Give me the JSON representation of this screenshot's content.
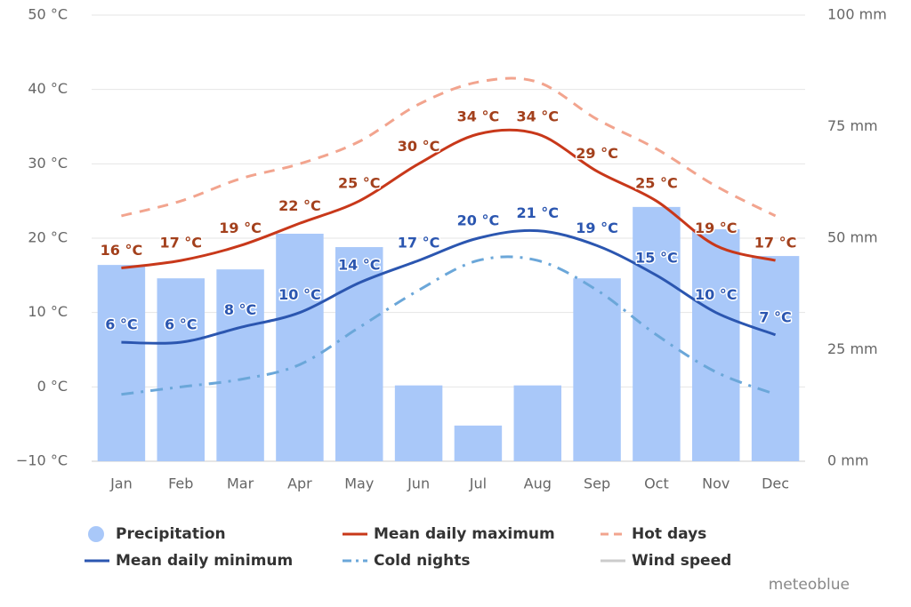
{
  "chart_data": {
    "type": "combo",
    "categories": [
      "Jan",
      "Feb",
      "Mar",
      "Apr",
      "May",
      "Jun",
      "Jul",
      "Aug",
      "Sep",
      "Oct",
      "Nov",
      "Dec"
    ],
    "ylim": [
      -10,
      50
    ],
    "yticks": [
      {
        "value": -10,
        "label": "−10 °C"
      },
      {
        "value": 0,
        "label": "0 °C"
      },
      {
        "value": 10,
        "label": "10 °C"
      },
      {
        "value": 20,
        "label": "20 °C"
      },
      {
        "value": 30,
        "label": "30 °C"
      },
      {
        "value": 40,
        "label": "40 °C"
      },
      {
        "value": 50,
        "label": "50 °C"
      }
    ],
    "y2lim": [
      0,
      100
    ],
    "y2ticks": [
      {
        "value": 0,
        "label": "0 mm"
      },
      {
        "value": 25,
        "label": "25 mm"
      },
      {
        "value": 50,
        "label": "50 mm"
      },
      {
        "value": 75,
        "label": "75 mm"
      },
      {
        "value": 100,
        "label": "100 mm"
      }
    ],
    "grid": true,
    "series": [
      {
        "name": "Precipitation",
        "type": "bar",
        "axis": "y2",
        "color": "#a9c8f9",
        "values": [
          44,
          41,
          43,
          51,
          48,
          17,
          8,
          17,
          41,
          57,
          52,
          46
        ]
      },
      {
        "name": "Mean daily maximum",
        "type": "line",
        "style": "solid",
        "color": "#c8381a",
        "label_color": "#a3401c",
        "values": [
          16,
          17,
          19,
          22,
          25,
          30,
          34,
          34,
          29,
          25,
          19,
          17
        ],
        "value_labels": [
          "16 °C",
          "17 °C",
          "19 °C",
          "22 °C",
          "25 °C",
          "30 °C",
          "34 °C",
          "34 °C",
          "29 °C",
          "25 °C",
          "19 °C",
          "17 °C"
        ]
      },
      {
        "name": "Hot days",
        "type": "line",
        "style": "dashed",
        "color": "#f2a48e",
        "values": [
          23,
          25,
          28,
          30,
          33,
          38,
          41,
          41,
          36,
          32,
          27,
          23
        ]
      },
      {
        "name": "Mean daily minimum",
        "type": "line",
        "style": "solid",
        "color": "#2b56b0",
        "label_color": "#2b56b0",
        "values": [
          6,
          6,
          8,
          10,
          14,
          17,
          20,
          21,
          19,
          15,
          10,
          7
        ],
        "value_labels": [
          "6 °C",
          "6 °C",
          "8 °C",
          "10 °C",
          "14 °C",
          "17 °C",
          "20 °C",
          "21 °C",
          "19 °C",
          "15 °C",
          "10 °C",
          "7 °C"
        ]
      },
      {
        "name": "Cold nights",
        "type": "line",
        "style": "dashdot",
        "color": "#6ba7d9",
        "values": [
          -1,
          0,
          1,
          3,
          8,
          13,
          17,
          17,
          13,
          7,
          2,
          -1
        ]
      },
      {
        "name": "Wind speed",
        "type": "line",
        "style": "solid",
        "color": "#cccccc",
        "visible": false
      }
    ],
    "credit": "meteoblue"
  }
}
